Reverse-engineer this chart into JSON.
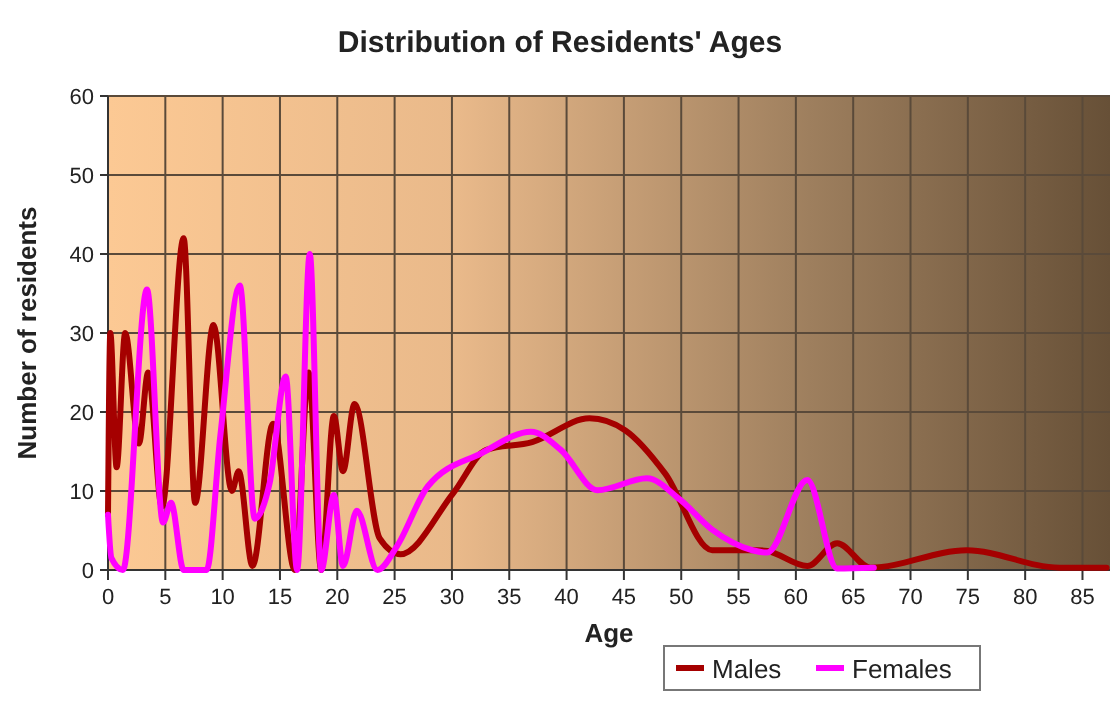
{
  "chart_data": {
    "type": "line",
    "title": "Distribution of Residents' Ages",
    "xlabel": "Age",
    "ylabel": "Number of residents",
    "xlim": [
      0,
      87.4
    ],
    "xticks": [
      0,
      5,
      10,
      15,
      20,
      25,
      30,
      35,
      40,
      45,
      50,
      55,
      60,
      65,
      70,
      75,
      80,
      85
    ],
    "ylim": [
      0,
      60
    ],
    "yticks": [
      0,
      10,
      20,
      30,
      40,
      50,
      60
    ],
    "grid": true,
    "legend": "bottom",
    "series": [
      {
        "name": "Males",
        "color": "#a50000",
        "x": [
          0,
          0.2,
          0.75,
          1.5,
          2.7,
          3.5,
          4.7,
          6.6,
          7.6,
          9.2,
          10.8,
          11.4,
          12.6,
          14.4,
          16.3,
          17.5,
          18.6,
          19.7,
          20.5,
          21.5,
          23.7,
          25.5,
          30.1,
          33,
          37,
          42,
          45.1,
          48.6,
          52.7,
          56.7,
          57.5,
          61,
          63.6,
          66.5,
          74.9,
          83,
          87.1
        ],
        "values": [
          7,
          30,
          13,
          30,
          16,
          25,
          8,
          42,
          8.5,
          31,
          10,
          12.5,
          0.5,
          18.5,
          0,
          25,
          0,
          19.5,
          12.5,
          21,
          4,
          2,
          9.7,
          15.2,
          16.2,
          19.2,
          17.7,
          12.2,
          2.5,
          2.5,
          2.4,
          0.5,
          3.4,
          0.3,
          2.5,
          0.3,
          0.3
        ]
      },
      {
        "name": "Females",
        "color": "#ff00ff",
        "x": [
          0,
          0.3,
          1.3,
          3.4,
          4.8,
          5.5,
          6.6,
          8.6,
          9.8,
          11.5,
          12.8,
          14.1,
          15.5,
          16.5,
          17.6,
          18.6,
          19.7,
          20.5,
          21.7,
          23.5,
          25.2,
          27.9,
          32.6,
          36.9,
          39.5,
          42.7,
          47,
          49.9,
          52.7,
          56.2,
          57.5,
          61,
          63.6,
          66.8
        ],
        "values": [
          7,
          1.5,
          0,
          35.5,
          6,
          8.5,
          0,
          0,
          17,
          36,
          6.5,
          11,
          24.5,
          0,
          40,
          0,
          9.5,
          0.5,
          7.5,
          0,
          3,
          10.6,
          14.8,
          17.5,
          15.2,
          10.1,
          11.6,
          8.9,
          5.1,
          2.5,
          2.2,
          11.4,
          0.2,
          0.3
        ]
      }
    ]
  }
}
